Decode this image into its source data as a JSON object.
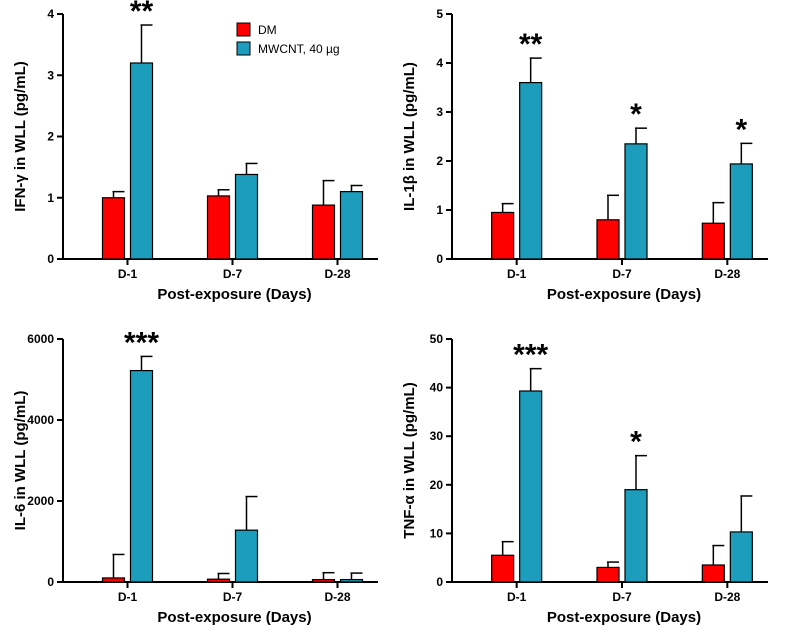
{
  "legend": {
    "position": "top-right of first panel",
    "entries": [
      {
        "name": "DM",
        "color": "#ff0000"
      },
      {
        "name": "MWCNT, 40 µg",
        "color": "#1b9dbb"
      }
    ]
  },
  "chart_data": [
    {
      "type": "bar",
      "xlabel": "Post-exposure (Days)",
      "ylabel": "IFN-γ in WLL (pg/mL)",
      "ylim": [
        0,
        4
      ],
      "yticks": [
        0,
        1,
        2,
        3,
        4
      ],
      "ytick_labels": [
        "0",
        "1",
        "2",
        "3",
        "4"
      ],
      "categories": [
        "D-1",
        "D-7",
        "D-28"
      ],
      "series": [
        {
          "name": "DM",
          "values": [
            1.0,
            1.03,
            0.88
          ],
          "errors": [
            0.1,
            0.1,
            0.4
          ]
        },
        {
          "name": "MWCNT, 40 µg",
          "values": [
            3.2,
            1.38,
            1.1
          ],
          "errors": [
            0.62,
            0.18,
            0.1
          ]
        }
      ],
      "significance": [
        "**",
        "",
        ""
      ]
    },
    {
      "type": "bar",
      "xlabel": "Post-exposure (Days)",
      "ylabel": "IL-1β in WLL (pg/mL)",
      "ylim": [
        0,
        5
      ],
      "yticks": [
        0,
        1,
        2,
        3,
        4,
        5
      ],
      "ytick_labels": [
        "0",
        "1",
        "2",
        "3",
        "4",
        "5"
      ],
      "categories": [
        "D-1",
        "D-7",
        "D-28"
      ],
      "series": [
        {
          "name": "DM",
          "values": [
            0.95,
            0.8,
            0.73
          ],
          "errors": [
            0.18,
            0.5,
            0.42
          ]
        },
        {
          "name": "MWCNT, 40 µg",
          "values": [
            3.6,
            2.35,
            1.94
          ],
          "errors": [
            0.5,
            0.32,
            0.42
          ]
        }
      ],
      "significance": [
        "**",
        "*",
        "*"
      ]
    },
    {
      "type": "bar",
      "xlabel": "Post-exposure (Days)",
      "ylabel": "IL-6 in WLL (pg/mL)",
      "ylim": [
        0,
        6000
      ],
      "yticks": [
        0,
        2000,
        4000,
        6000
      ],
      "ytick_labels": [
        "0",
        "2000",
        "4000",
        "6000"
      ],
      "categories": [
        "D-1",
        "D-7",
        "D-28"
      ],
      "series": [
        {
          "name": "DM",
          "values": [
            100,
            70,
            60
          ],
          "errors": [
            580,
            140,
            170
          ]
        },
        {
          "name": "MWCNT, 40 µg",
          "values": [
            5220,
            1280,
            60
          ],
          "errors": [
            350,
            830,
            160
          ]
        }
      ],
      "significance": [
        "***",
        "",
        ""
      ]
    },
    {
      "type": "bar",
      "xlabel": "Post-exposure (Days)",
      "ylabel": "TNF-α in WLL (pg/mL)",
      "ylim": [
        0,
        50
      ],
      "yticks": [
        0,
        10,
        20,
        30,
        40,
        50
      ],
      "ytick_labels": [
        "0",
        "10",
        "20",
        "30",
        "40",
        "50"
      ],
      "categories": [
        "D-1",
        "D-7",
        "D-28"
      ],
      "series": [
        {
          "name": "DM",
          "values": [
            5.5,
            3.0,
            3.5
          ],
          "errors": [
            2.8,
            1.1,
            4.0
          ]
        },
        {
          "name": "MWCNT, 40 µg",
          "values": [
            39.3,
            19.0,
            10.3
          ],
          "errors": [
            4.6,
            7.0,
            7.4
          ]
        }
      ],
      "significance": [
        "***",
        "*",
        ""
      ]
    }
  ]
}
